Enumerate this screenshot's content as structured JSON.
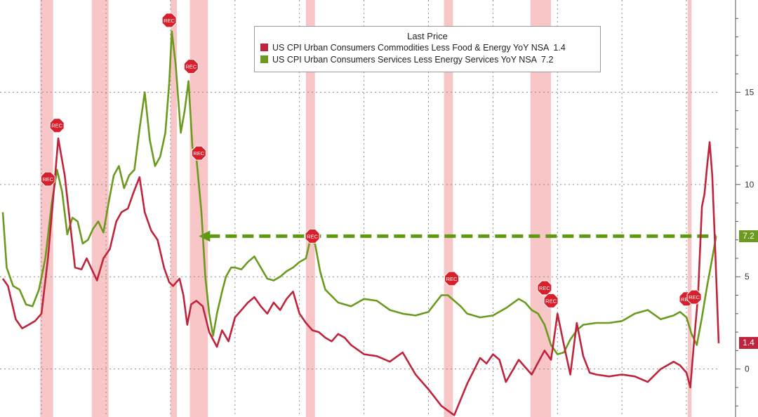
{
  "chart_data": {
    "type": "line",
    "x_range": [
      1967,
      2022.5
    ],
    "ylim": [
      -2.6,
      20
    ],
    "yticks": [
      0,
      5,
      10,
      15
    ],
    "ytick_labels": [
      "0",
      "5",
      "10",
      "15"
    ],
    "grid": true,
    "legend_title": "Last Price",
    "legend_placement": "top-center",
    "recession_shading": [
      [
        1969.9,
        1970.9
      ],
      [
        1973.9,
        1975.2
      ],
      [
        1980.0,
        1980.5
      ],
      [
        1981.5,
        1982.9
      ],
      [
        1990.5,
        1991.2
      ],
      [
        2001.2,
        2001.9
      ],
      [
        2007.9,
        2009.5
      ],
      [
        2020.1,
        2020.4
      ]
    ],
    "recession_marker_label": "REC",
    "recession_markers": [
      {
        "x": 1970.5,
        "y": 10.3
      },
      {
        "x": 1971.2,
        "y": 13.2
      },
      {
        "x": 1979.9,
        "y": 18.9
      },
      {
        "x": 1981.6,
        "y": 16.4
      },
      {
        "x": 1982.2,
        "y": 11.7
      },
      {
        "x": 1991.0,
        "y": 7.2
      },
      {
        "x": 2001.8,
        "y": 4.9
      },
      {
        "x": 2009.0,
        "y": 4.4
      },
      {
        "x": 2009.5,
        "y": 3.7
      },
      {
        "x": 2020.0,
        "y": 3.8
      },
      {
        "x": 2020.6,
        "y": 3.9
      }
    ],
    "reference_line": {
      "value": 7.2,
      "x_start": 1982.2,
      "x_end": 2022.3
    },
    "series": [
      {
        "name": "US CPI Urban Consumers Commodities Less Food & Energy YoY NSA",
        "last": "1.4",
        "color": "#c0243c",
        "x": [
          1967.0,
          1967.4,
          1968.0,
          1968.5,
          1969.0,
          1969.5,
          1970.0,
          1970.5,
          1971.0,
          1971.3,
          1971.8,
          1972.2,
          1972.6,
          1973.1,
          1973.5,
          1973.9,
          1974.3,
          1974.8,
          1975.3,
          1975.8,
          1976.2,
          1976.7,
          1977.1,
          1977.6,
          1978.0,
          1978.5,
          1979.0,
          1979.5,
          1979.9,
          1980.2,
          1980.7,
          1981.0,
          1981.3,
          1981.6,
          1982.0,
          1982.5,
          1983.0,
          1983.3,
          1983.6,
          1984.0,
          1984.5,
          1985.0,
          1985.5,
          1986.0,
          1986.5,
          1987.0,
          1987.5,
          1988.0,
          1988.5,
          1989.0,
          1989.5,
          1990.0,
          1990.5,
          1991.0,
          1991.5,
          1992.0,
          1992.5,
          1993.0,
          1993.5,
          1994.0,
          1995.0,
          1996.0,
          1997.0,
          1998.0,
          1999.0,
          2000.0,
          2001.0,
          2002.0,
          2003.0,
          2004.0,
          2004.5,
          2005.0,
          2005.5,
          2006.0,
          2007.0,
          2008.0,
          2009.0,
          2009.5,
          2010.0,
          2010.5,
          2011.0,
          2011.5,
          2012.0,
          2012.5,
          2013.0,
          2014.0,
          2015.0,
          2016.0,
          2017.0,
          2018.0,
          2019.0,
          2019.5,
          2020.0,
          2020.3,
          2020.6,
          2020.9,
          2021.2,
          2021.4,
          2021.6,
          2021.8,
          2022.0,
          2022.2,
          2022.5
        ],
        "y": [
          4.9,
          4.5,
          2.7,
          2.2,
          2.4,
          2.6,
          3.0,
          6.0,
          10.0,
          12.5,
          10.5,
          8.0,
          5.5,
          5.4,
          6.0,
          5.4,
          4.8,
          6.0,
          6.5,
          8.0,
          8.5,
          8.7,
          9.5,
          10.4,
          8.5,
          7.5,
          7.0,
          5.5,
          4.7,
          4.5,
          4.9,
          4.0,
          2.4,
          3.5,
          3.7,
          3.4,
          2.0,
          1.6,
          1.2,
          2.1,
          1.5,
          2.8,
          3.2,
          3.6,
          3.9,
          3.4,
          3.0,
          3.6,
          3.2,
          3.8,
          4.2,
          3.0,
          2.5,
          2.1,
          2.0,
          1.7,
          1.5,
          1.9,
          1.7,
          1.3,
          0.8,
          0.7,
          0.4,
          0.9,
          -0.3,
          -1.1,
          -2.0,
          -2.5,
          -0.8,
          0.6,
          0.3,
          0.8,
          0.5,
          -0.7,
          0.5,
          -0.3,
          1.0,
          0.5,
          3.0,
          1.3,
          -0.3,
          2.5,
          0.7,
          -0.2,
          -0.3,
          -0.4,
          -0.3,
          -0.4,
          -0.7,
          0.0,
          0.4,
          0.2,
          -0.2,
          -1.0,
          1.6,
          4.0,
          8.8,
          9.5,
          11.0,
          12.3,
          10.5,
          7.0,
          1.4
        ]
      },
      {
        "name": "US CPI Urban Consumers Services Less Energy Services YoY NSA",
        "last": "7.2",
        "color": "#6b9a1f",
        "x": [
          1967.0,
          1967.3,
          1967.8,
          1968.3,
          1968.8,
          1969.3,
          1969.8,
          1970.3,
          1970.8,
          1971.2,
          1971.6,
          1972.0,
          1972.4,
          1972.8,
          1973.2,
          1973.6,
          1974.0,
          1974.4,
          1974.8,
          1975.2,
          1975.6,
          1976.0,
          1976.4,
          1976.8,
          1977.2,
          1977.6,
          1978.0,
          1978.4,
          1978.8,
          1979.2,
          1979.6,
          1979.9,
          1980.1,
          1980.4,
          1980.8,
          1981.1,
          1981.4,
          1981.7,
          1982.0,
          1982.4,
          1982.7,
          1983.0,
          1983.3,
          1983.6,
          1984.0,
          1984.3,
          1984.7,
          1985.0,
          1985.5,
          1986.0,
          1986.5,
          1987.0,
          1987.5,
          1988.0,
          1988.5,
          1989.0,
          1989.5,
          1990.0,
          1990.5,
          1990.8,
          1991.2,
          1991.6,
          1992.0,
          1993.0,
          1994.0,
          1995.0,
          1996.0,
          1997.0,
          1998.0,
          1999.0,
          2000.0,
          2001.0,
          2001.5,
          2002.0,
          2002.5,
          2003.0,
          2004.0,
          2005.0,
          2006.0,
          2007.0,
          2007.5,
          2008.0,
          2008.5,
          2009.0,
          2009.5,
          2010.0,
          2010.5,
          2011.0,
          2011.5,
          2012.0,
          2013.0,
          2014.0,
          2015.0,
          2016.0,
          2017.0,
          2018.0,
          2019.0,
          2019.5,
          2020.0,
          2020.4,
          2020.8,
          2021.2,
          2021.6,
          2022.0,
          2022.3
        ],
        "y": [
          8.5,
          5.5,
          4.5,
          4.3,
          3.5,
          3.4,
          4.3,
          6.0,
          9.0,
          10.8,
          9.6,
          7.3,
          8.2,
          8.0,
          6.8,
          7.0,
          7.6,
          8.0,
          7.4,
          9.0,
          10.5,
          11.0,
          9.8,
          10.5,
          10.8,
          13.0,
          15.0,
          12.4,
          11.0,
          11.5,
          12.8,
          15.5,
          18.3,
          16.5,
          12.8,
          14.0,
          15.6,
          12.0,
          11.5,
          8.5,
          5.0,
          3.0,
          1.8,
          3.0,
          4.2,
          5.0,
          5.5,
          5.5,
          5.4,
          5.8,
          6.1,
          5.5,
          4.9,
          4.8,
          5.0,
          5.3,
          5.5,
          5.8,
          6.0,
          6.9,
          6.8,
          5.3,
          4.3,
          3.6,
          3.4,
          3.8,
          3.7,
          3.2,
          3.0,
          2.9,
          3.1,
          4.0,
          4.0,
          3.7,
          3.4,
          3.0,
          2.8,
          2.9,
          3.3,
          3.8,
          3.6,
          3.2,
          3.0,
          2.4,
          1.3,
          0.8,
          0.9,
          1.6,
          2.1,
          2.4,
          2.5,
          2.5,
          2.6,
          3.0,
          3.2,
          2.7,
          2.9,
          3.1,
          2.8,
          1.9,
          1.3,
          2.8,
          4.5,
          6.0,
          7.2
        ]
      }
    ]
  }
}
